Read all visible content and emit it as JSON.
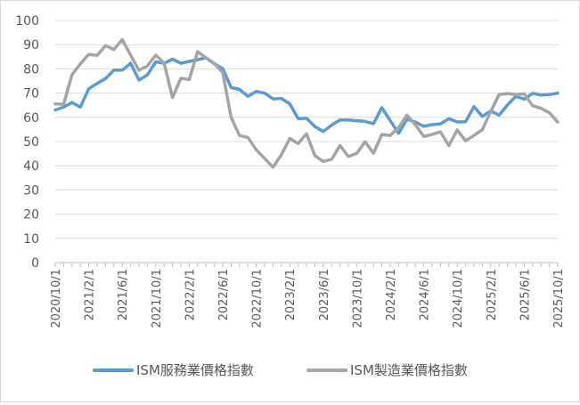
{
  "chart_data": {
    "type": "line",
    "title": "",
    "xlabel": "",
    "ylabel": "",
    "ylim": [
      0,
      100
    ],
    "yticks": [
      0,
      10,
      20,
      30,
      40,
      50,
      60,
      70,
      80,
      90,
      100
    ],
    "grid": "horizontal",
    "legend_position": "bottom",
    "x": [
      "2020/10/1",
      "2020/11/1",
      "2020/12/1",
      "2021/1/1",
      "2021/2/1",
      "2021/3/1",
      "2021/4/1",
      "2021/5/1",
      "2021/6/1",
      "2021/7/1",
      "2021/8/1",
      "2021/9/1",
      "2021/10/1",
      "2021/11/1",
      "2021/12/1",
      "2022/1/1",
      "2022/2/1",
      "2022/3/1",
      "2022/4/1",
      "2022/5/1",
      "2022/6/1",
      "2022/7/1",
      "2022/8/1",
      "2022/9/1",
      "2022/10/1",
      "2022/11/1",
      "2022/12/1",
      "2023/1/1",
      "2023/2/1",
      "2023/3/1",
      "2023/4/1",
      "2023/5/1",
      "2023/6/1",
      "2023/7/1",
      "2023/8/1",
      "2023/9/1",
      "2023/10/1",
      "2023/11/1",
      "2023/12/1",
      "2024/1/1",
      "2024/2/1",
      "2024/3/1",
      "2024/4/1",
      "2024/5/1",
      "2024/6/1",
      "2024/7/1",
      "2024/8/1",
      "2024/9/1",
      "2024/10/1",
      "2024/11/1",
      "2024/12/1",
      "2025/1/1",
      "2025/2/1",
      "2025/3/1",
      "2025/4/1",
      "2025/5/1",
      "2025/6/1",
      "2025/7/1",
      "2025/8/1",
      "2025/9/1",
      "2025/10/1"
    ],
    "xticks": [
      "2020/10/1",
      "2021/2/1",
      "2021/6/1",
      "2021/10/1",
      "2022/2/1",
      "2022/6/1",
      "2022/10/1",
      "2023/2/1",
      "2023/6/1",
      "2023/10/1",
      "2024/2/1",
      "2024/6/1",
      "2024/10/1",
      "2025/2/1",
      "2025/6/1",
      "2025/10/1"
    ],
    "series": [
      {
        "name": "ISM服務業價格指數",
        "color": "#5b9bd5",
        "values": [
          63.0,
          64.2,
          66.1,
          64.2,
          71.8,
          74.0,
          76.0,
          79.5,
          79.5,
          82.3,
          75.4,
          77.5,
          82.9,
          82.3,
          84.0,
          82.3,
          83.1,
          83.8,
          84.6,
          82.1,
          80.1,
          72.3,
          71.5,
          68.7,
          70.7,
          70.0,
          67.6,
          67.8,
          65.6,
          59.5,
          59.6,
          56.2,
          54.1,
          56.8,
          58.9,
          58.9,
          58.6,
          58.3,
          57.4,
          64.0,
          58.6,
          53.4,
          59.2,
          58.1,
          56.3,
          57.0,
          57.3,
          59.4,
          58.1,
          58.2,
          64.4,
          60.4,
          62.6,
          60.9,
          65.1,
          68.7,
          67.5,
          69.9,
          69.2,
          69.4,
          70.0
        ]
      },
      {
        "name": "ISM製造業價格指數",
        "color": "#a5a5a5",
        "values": [
          65.5,
          65.4,
          77.6,
          82.1,
          86.0,
          85.6,
          89.6,
          88.0,
          92.1,
          85.7,
          79.4,
          81.2,
          85.7,
          82.4,
          68.2,
          76.1,
          75.6,
          87.1,
          84.6,
          82.2,
          78.5,
          60.0,
          52.5,
          51.7,
          46.6,
          43.0,
          39.4,
          44.5,
          51.3,
          49.2,
          53.2,
          44.2,
          41.8,
          42.6,
          48.4,
          43.8,
          45.1,
          49.9,
          45.2,
          52.9,
          52.5,
          55.8,
          60.9,
          57.0,
          52.1,
          52.9,
          54.0,
          48.3,
          54.8,
          50.3,
          52.5,
          54.9,
          62.4,
          69.4,
          69.8,
          69.4,
          69.7,
          64.8,
          63.7,
          61.9,
          58.0
        ]
      }
    ]
  }
}
